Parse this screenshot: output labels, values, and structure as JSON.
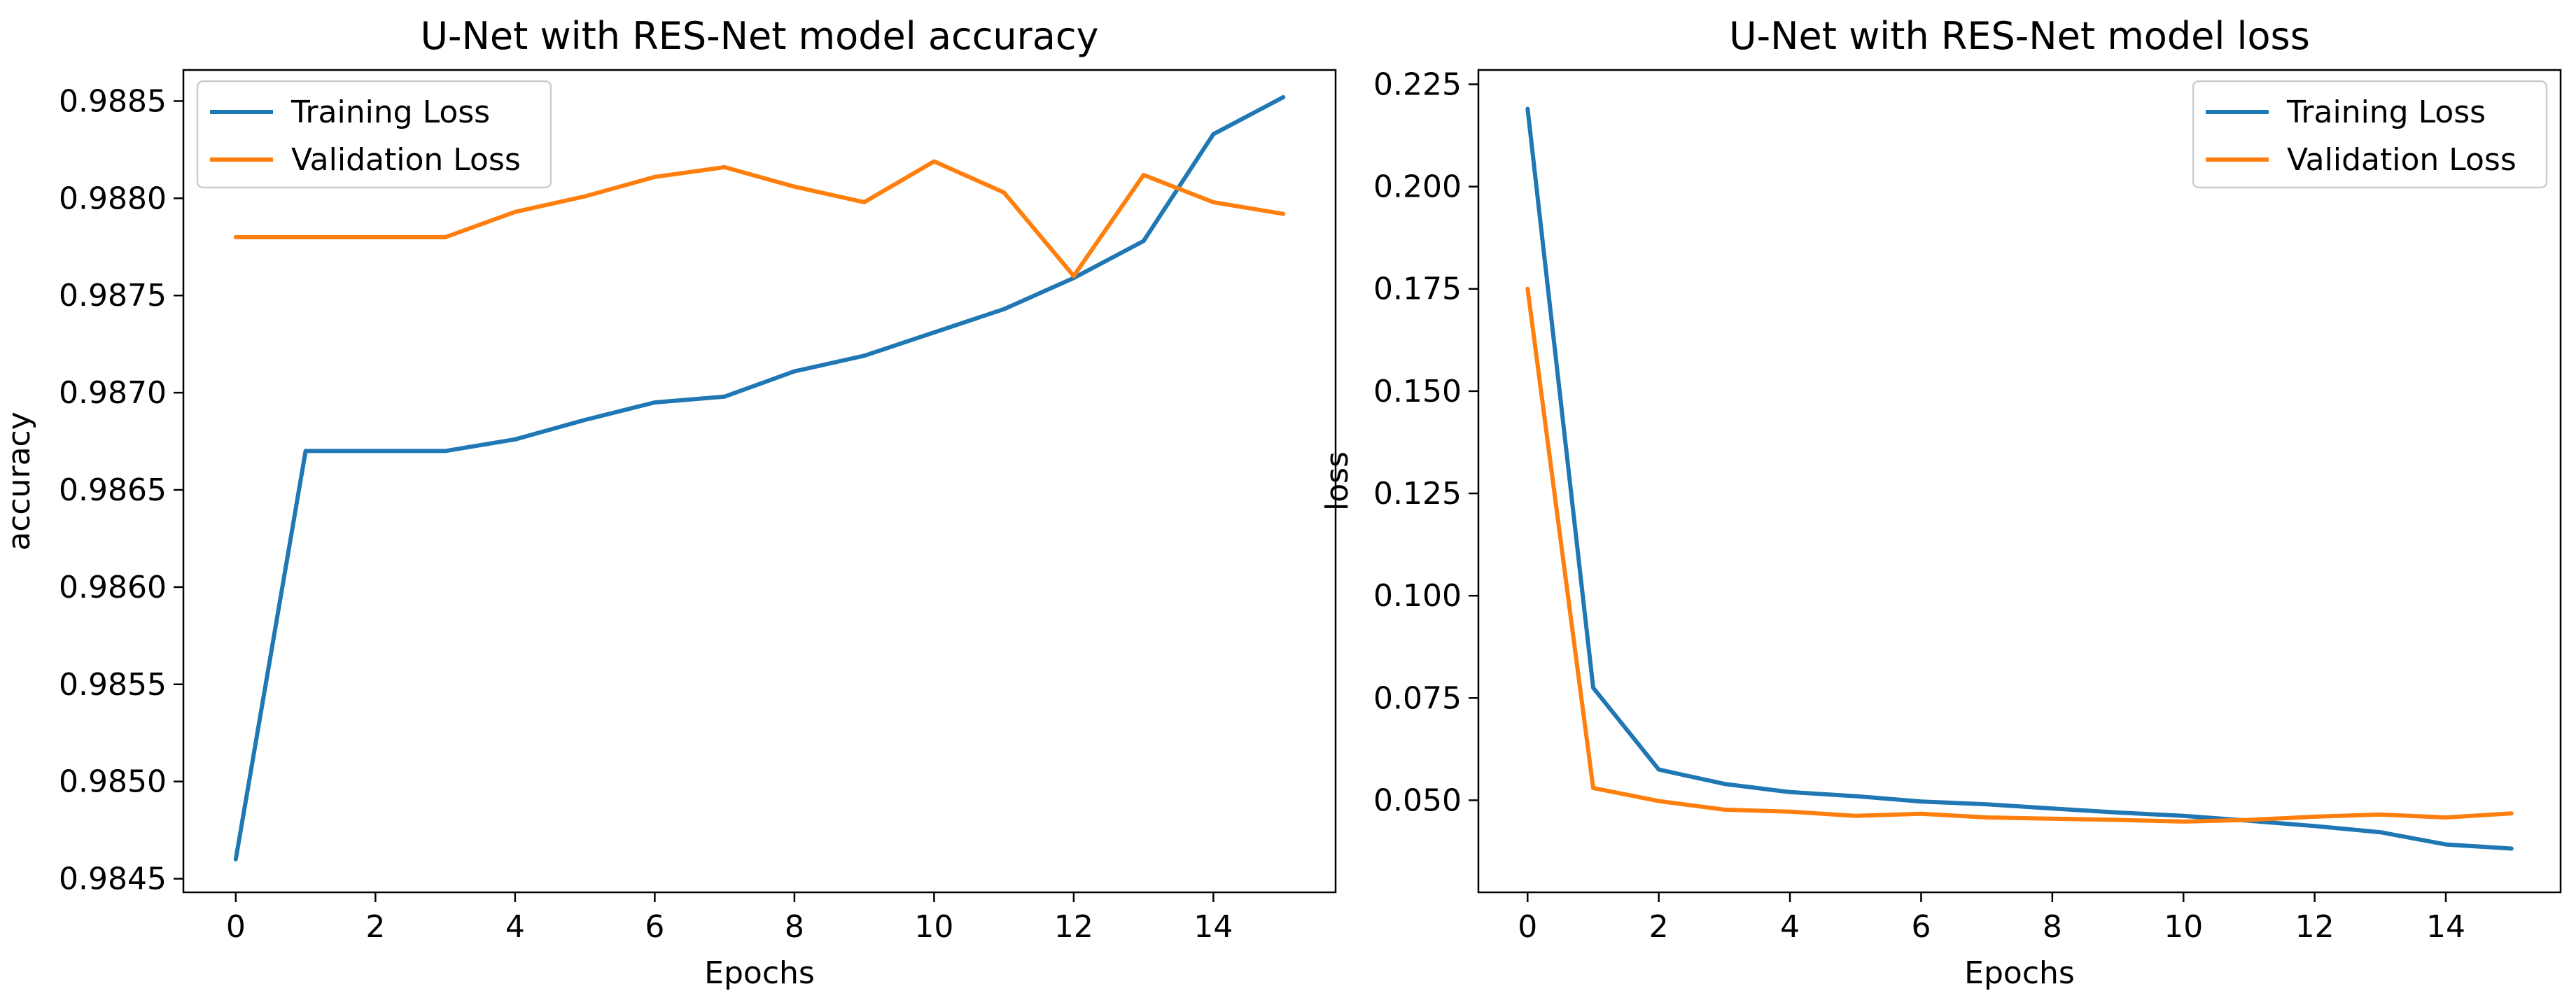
{
  "chart_data": [
    {
      "type": "line",
      "title": "U-Net with RES-Net model accuracy",
      "xlabel": "Epochs",
      "ylabel": "accuracy",
      "xlim": [
        -0.75,
        15.75
      ],
      "ylim": [
        0.98443,
        0.98866
      ],
      "xticks": [
        0,
        2,
        4,
        6,
        8,
        10,
        12,
        14
      ],
      "yticks": [
        0.9845,
        0.985,
        0.9855,
        0.986,
        0.9865,
        0.987,
        0.9875,
        0.988,
        0.9885
      ],
      "ytick_labels": [
        "0.9845",
        "0.9850",
        "0.9855",
        "0.9860",
        "0.9865",
        "0.9870",
        "0.9875",
        "0.9880",
        "0.9885"
      ],
      "grid": false,
      "legend_position": "top-left",
      "x": [
        0,
        1,
        2,
        3,
        4,
        5,
        6,
        7,
        8,
        9,
        10,
        11,
        12,
        13,
        14,
        15
      ],
      "series": [
        {
          "name": "Training Loss",
          "color": "#1f77b4",
          "values": [
            0.9846,
            0.9867,
            0.9867,
            0.9867,
            0.98676,
            0.98686,
            0.98695,
            0.98698,
            0.98711,
            0.98719,
            0.98731,
            0.98743,
            0.98759,
            0.98778,
            0.98833,
            0.98852
          ]
        },
        {
          "name": "Validation Loss",
          "color": "#ff7f0e",
          "values": [
            0.9878,
            0.9878,
            0.9878,
            0.9878,
            0.98793,
            0.98801,
            0.98811,
            0.98816,
            0.98806,
            0.98798,
            0.98819,
            0.98803,
            0.9876,
            0.98812,
            0.98798,
            0.98792
          ]
        }
      ]
    },
    {
      "type": "line",
      "title": "U-Net with RES-Net model loss",
      "xlabel": "Epochs",
      "ylabel": "loss",
      "xlim": [
        -0.75,
        15.75
      ],
      "ylim": [
        0.0275,
        0.2285
      ],
      "xticks": [
        0,
        2,
        4,
        6,
        8,
        10,
        12,
        14
      ],
      "yticks": [
        0.05,
        0.075,
        0.1,
        0.125,
        0.15,
        0.175,
        0.2,
        0.225
      ],
      "ytick_labels": [
        "0.050",
        "0.075",
        "0.100",
        "0.125",
        "0.150",
        "0.175",
        "0.200",
        "0.225"
      ],
      "grid": false,
      "legend_position": "top-right",
      "x": [
        0,
        1,
        2,
        3,
        4,
        5,
        6,
        7,
        8,
        9,
        10,
        11,
        12,
        13,
        14,
        15
      ],
      "series": [
        {
          "name": "Training Loss",
          "color": "#1f77b4",
          "values": [
            0.219,
            0.0775,
            0.0575,
            0.054,
            0.052,
            0.051,
            0.0497,
            0.049,
            0.048,
            0.047,
            0.0462,
            0.045,
            0.0437,
            0.0422,
            0.0392,
            0.0382
          ]
        },
        {
          "name": "Validation Loss",
          "color": "#ff7f0e",
          "values": [
            0.175,
            0.053,
            0.0498,
            0.0477,
            0.0472,
            0.0462,
            0.0467,
            0.0458,
            0.0455,
            0.0452,
            0.0448,
            0.0452,
            0.046,
            0.0465,
            0.0458,
            0.0468
          ]
        }
      ]
    }
  ]
}
